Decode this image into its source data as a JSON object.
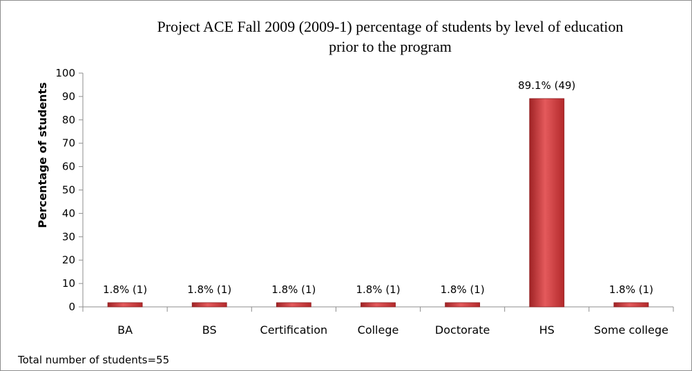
{
  "chart_data": {
    "type": "bar",
    "title_lines": [
      "Project ACE Fall 2009 (2009-1)  percentage of students by level of education",
      "prior to the program"
    ],
    "ylabel": "Percentage of students",
    "xlabel": "",
    "ylim": [
      0,
      100
    ],
    "yticks": [
      0,
      10,
      20,
      30,
      40,
      50,
      60,
      70,
      80,
      90,
      100
    ],
    "categories": [
      "BA",
      "BS",
      "Certification",
      "College",
      "Doctorate",
      "HS",
      "Some college"
    ],
    "values": [
      1.8,
      1.8,
      1.8,
      1.8,
      1.8,
      89.1,
      1.8
    ],
    "data_labels": [
      "1.8% (1)",
      "1.8% (1)",
      "1.8% (1)",
      "1.8% (1)",
      "1.8% (1)",
      "89.1% (49)",
      "1.8% (1)"
    ],
    "bar_color": "#c8393b",
    "grid": false,
    "legend": "none"
  },
  "footnote": "Total number of students=55"
}
